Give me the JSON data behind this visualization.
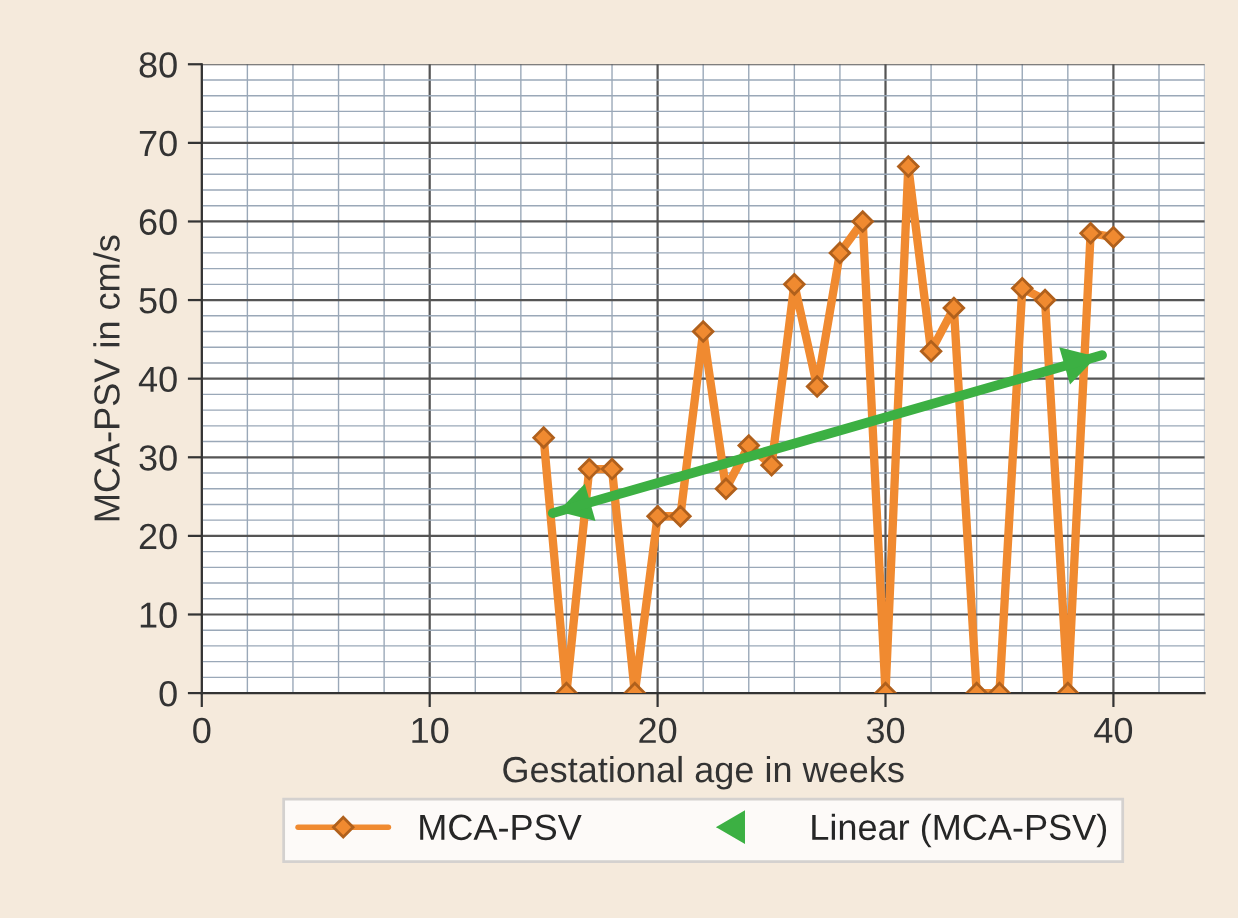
{
  "chart_data": {
    "type": "line",
    "xlabel": "Gestational age in weeks",
    "ylabel": "MCA-PSV in cm/s",
    "xlim": [
      0,
      44
    ],
    "xticks": [
      0,
      10,
      20,
      30,
      40
    ],
    "ylim": [
      0,
      80
    ],
    "yticks": [
      0,
      10,
      20,
      30,
      40,
      50,
      60,
      70,
      80
    ],
    "grid": true,
    "legend": "bottom",
    "series": [
      {
        "name": "MCA-PSV",
        "color": "#f08a30",
        "marker": "diamond",
        "x": [
          15,
          16,
          17,
          18,
          19,
          20,
          21,
          22,
          23,
          24,
          25,
          26,
          27,
          28,
          29,
          30,
          31,
          32,
          33,
          34,
          35,
          36,
          37,
          38,
          39,
          40
        ],
        "values": [
          32.5,
          0,
          28.5,
          28.5,
          0,
          22.5,
          22.5,
          46,
          26,
          31.5,
          29,
          52,
          39,
          56,
          60,
          0,
          67,
          43.5,
          49,
          0,
          0,
          51.5,
          50,
          0,
          58.5,
          58
        ]
      },
      {
        "name": "Linear (MCA-PSV)",
        "type": "line",
        "color": "#3cb043",
        "marker": "none",
        "x": [
          15.4,
          39.5
        ],
        "values": [
          22.9,
          43
        ]
      }
    ]
  }
}
